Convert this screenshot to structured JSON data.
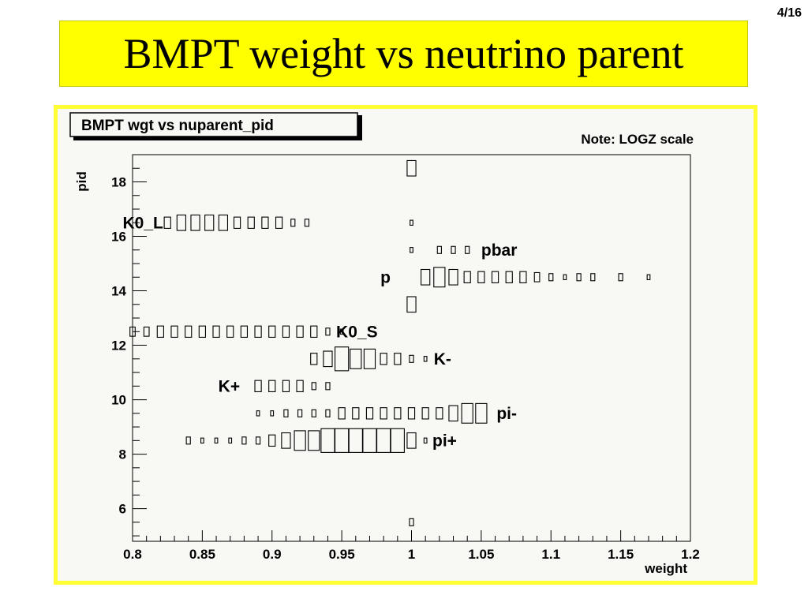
{
  "page": {
    "page_number": "4/16",
    "title": "BMPT weight vs neutrino parent"
  },
  "chart_data": {
    "type": "heatmap",
    "title": "BMPT wgt vs nuparent_pid",
    "note": "Note: LOGZ scale",
    "xlabel": "weight",
    "ylabel": "pid",
    "xlim": [
      0.8,
      1.2
    ],
    "ylim": [
      4.8,
      19.0
    ],
    "z_scale": "log",
    "x_ticks": [
      "0.8",
      "0.85",
      "0.9",
      "0.95",
      "1",
      "1.05",
      "1.1",
      "1.15",
      "1.2"
    ],
    "y_ticks": [
      "6",
      "8",
      "10",
      "12",
      "14",
      "16",
      "18"
    ],
    "particle_labels": [
      {
        "label": "K0_L",
        "pid": 16.5
      },
      {
        "label": "pbar",
        "pid": 15.5
      },
      {
        "label": "p",
        "pid": 14.5
      },
      {
        "label": "K0_S",
        "pid": 12.5
      },
      {
        "label": "K-",
        "pid": 11.5
      },
      {
        "label": "K+",
        "pid": 10.5
      },
      {
        "label": "pi-",
        "pid": 9.5
      },
      {
        "label": "pi+",
        "pid": 8.5
      }
    ],
    "rows": [
      {
        "pid": 18.5,
        "bins": [
          [
            1.0,
            3
          ]
        ]
      },
      {
        "pid": 16.5,
        "bins": [
          [
            0.825,
            2
          ],
          [
            0.835,
            3
          ],
          [
            0.845,
            3
          ],
          [
            0.855,
            3
          ],
          [
            0.865,
            3
          ],
          [
            0.875,
            2
          ],
          [
            0.885,
            2
          ],
          [
            0.895,
            2
          ],
          [
            0.905,
            2
          ],
          [
            0.915,
            1
          ],
          [
            0.925,
            1
          ],
          [
            1.0,
            0.5
          ]
        ]
      },
      {
        "pid": 15.5,
        "bins": [
          [
            1.0,
            0.5
          ],
          [
            1.02,
            1
          ],
          [
            1.03,
            1
          ],
          [
            1.04,
            1
          ]
        ]
      },
      {
        "pid": 14.5,
        "bins": [
          [
            1.01,
            3
          ],
          [
            1.02,
            4
          ],
          [
            1.03,
            3
          ],
          [
            1.04,
            2
          ],
          [
            1.05,
            2
          ],
          [
            1.06,
            2
          ],
          [
            1.07,
            2
          ],
          [
            1.08,
            2
          ],
          [
            1.09,
            1.5
          ],
          [
            1.1,
            1
          ],
          [
            1.11,
            0.5
          ],
          [
            1.12,
            1
          ],
          [
            1.13,
            1
          ],
          [
            1.15,
            1
          ],
          [
            1.17,
            0.5
          ]
        ]
      },
      {
        "pid": 13.5,
        "bins": [
          [
            1.0,
            3
          ]
        ]
      },
      {
        "pid": 12.5,
        "bins": [
          [
            0.8,
            1.5
          ],
          [
            0.81,
            1.5
          ],
          [
            0.82,
            2
          ],
          [
            0.83,
            2
          ],
          [
            0.84,
            2
          ],
          [
            0.85,
            2
          ],
          [
            0.86,
            2
          ],
          [
            0.87,
            2
          ],
          [
            0.88,
            2
          ],
          [
            0.89,
            2
          ],
          [
            0.9,
            2
          ],
          [
            0.91,
            2
          ],
          [
            0.92,
            2
          ],
          [
            0.93,
            2
          ],
          [
            0.94,
            1
          ],
          [
            0.95,
            0.5
          ]
        ]
      },
      {
        "pid": 11.5,
        "bins": [
          [
            0.93,
            2
          ],
          [
            0.94,
            3
          ],
          [
            0.95,
            5
          ],
          [
            0.96,
            4
          ],
          [
            0.97,
            4
          ],
          [
            0.98,
            2
          ],
          [
            0.99,
            2
          ],
          [
            1.0,
            1
          ],
          [
            1.01,
            0.5
          ]
        ]
      },
      {
        "pid": 10.5,
        "bins": [
          [
            0.89,
            2
          ],
          [
            0.9,
            2
          ],
          [
            0.91,
            2
          ],
          [
            0.92,
            2
          ],
          [
            0.93,
            1
          ],
          [
            0.94,
            1
          ]
        ]
      },
      {
        "pid": 9.5,
        "bins": [
          [
            0.89,
            0.5
          ],
          [
            0.9,
            0.5
          ],
          [
            0.91,
            1
          ],
          [
            0.92,
            1
          ],
          [
            0.93,
            1
          ],
          [
            0.94,
            1
          ],
          [
            0.95,
            2
          ],
          [
            0.96,
            2
          ],
          [
            0.97,
            2
          ],
          [
            0.98,
            2
          ],
          [
            0.99,
            2
          ],
          [
            1.0,
            2
          ],
          [
            1.01,
            2
          ],
          [
            1.02,
            2
          ],
          [
            1.03,
            3
          ],
          [
            1.04,
            4
          ],
          [
            1.05,
            4
          ]
        ]
      },
      {
        "pid": 8.5,
        "bins": [
          [
            0.84,
            1
          ],
          [
            0.85,
            0.5
          ],
          [
            0.86,
            0.5
          ],
          [
            0.87,
            0.5
          ],
          [
            0.88,
            1
          ],
          [
            0.89,
            1
          ],
          [
            0.9,
            2
          ],
          [
            0.91,
            3
          ],
          [
            0.92,
            4
          ],
          [
            0.93,
            4
          ],
          [
            0.94,
            5
          ],
          [
            0.95,
            5
          ],
          [
            0.96,
            5
          ],
          [
            0.97,
            5
          ],
          [
            0.98,
            5
          ],
          [
            0.99,
            5
          ],
          [
            1.0,
            3
          ],
          [
            1.01,
            0.5
          ]
        ]
      },
      {
        "pid": 5.5,
        "bins": [
          [
            1.0,
            1
          ]
        ]
      }
    ]
  },
  "colors": {
    "title_bg": "#ffff00",
    "frame": "#ffff33",
    "canvas": "#f8f8f4",
    "ink": "#000000"
  }
}
